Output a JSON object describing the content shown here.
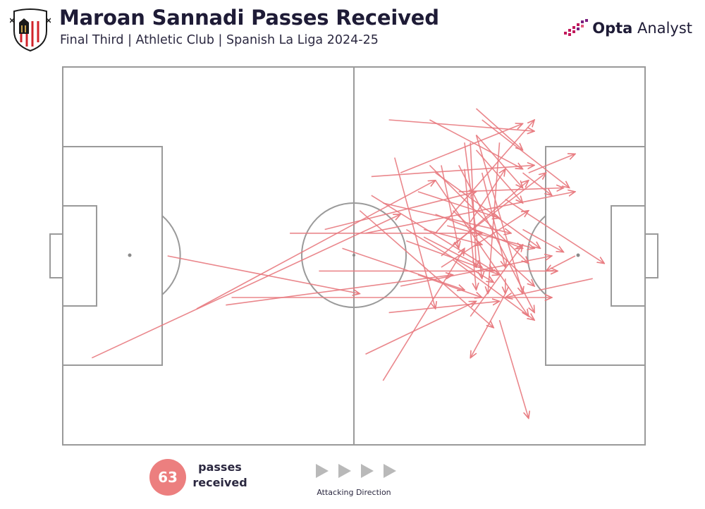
{
  "header": {
    "title": "Maroan Sannadi Passes Received",
    "subtitle": "Final Third | Athletic Club | Spanish La Liga 2024-25"
  },
  "crest": {
    "top_text": "ATHLETIC CLUB",
    "bottom_text": "BILBAO",
    "colors": {
      "red": "#d1232a",
      "black": "#1a1a1a",
      "gold": "#c9a14a"
    }
  },
  "brand": {
    "bold": "Opta",
    "rest": " Analyst",
    "accent": "#c2185b"
  },
  "summary": {
    "count": "63",
    "label_line1": "passes",
    "label_line2": "received"
  },
  "direction": {
    "label": "Attacking Direction",
    "icon": "play-triangle-icon",
    "count": 4
  },
  "colors": {
    "arrow": "#e87a7f",
    "pitch_line": "#9a9a9a",
    "badge": "#ec7f7f",
    "text": "#1e1b36"
  },
  "chart_data": {
    "type": "pass-map",
    "pitch": {
      "length": 100,
      "width": 100,
      "attacking": "left-to-right"
    },
    "passes": [
      [
        5,
        77,
        58,
        39
      ],
      [
        29,
        61,
        84,
        61
      ],
      [
        28,
        63,
        67,
        55
      ],
      [
        45,
        43,
        71,
        33
      ],
      [
        44,
        54,
        85,
        54
      ],
      [
        39,
        44,
        72,
        44
      ],
      [
        23,
        64,
        64,
        30
      ],
      [
        18,
        50,
        51,
        60
      ],
      [
        71,
        18,
        79,
        32
      ],
      [
        91,
        56,
        76,
        61
      ],
      [
        63,
        14,
        79,
        27
      ],
      [
        69,
        20,
        72,
        56
      ],
      [
        80,
        28,
        88,
        23
      ],
      [
        64,
        39,
        79,
        48
      ],
      [
        58,
        28,
        79,
        15
      ],
      [
        56,
        14,
        81,
        17
      ],
      [
        65,
        53,
        80,
        38
      ],
      [
        71,
        18,
        79,
        60
      ],
      [
        71,
        22,
        79,
        36
      ],
      [
        72,
        14,
        87,
        32
      ],
      [
        55,
        36,
        77,
        44
      ],
      [
        67,
        47,
        83,
        28
      ],
      [
        58,
        58,
        84,
        50
      ],
      [
        52,
        76,
        71,
        62
      ],
      [
        59,
        43,
        74,
        57
      ],
      [
        57,
        24,
        64,
        64
      ],
      [
        70,
        66,
        79,
        47
      ],
      [
        61,
        55,
        72,
        61
      ],
      [
        55,
        83,
        69,
        48
      ],
      [
        48,
        48,
        69,
        59
      ],
      [
        88,
        50,
        83,
        54
      ],
      [
        67,
        51,
        81,
        67
      ],
      [
        70,
        41,
        76,
        27
      ],
      [
        68,
        26,
        81,
        65
      ],
      [
        64,
        44,
        81,
        14
      ],
      [
        61,
        33,
        75,
        40
      ],
      [
        70,
        20,
        71,
        53
      ],
      [
        65,
        50,
        80,
        30
      ],
      [
        76,
        35,
        93,
        52
      ],
      [
        62,
        43,
        72,
        47
      ],
      [
        68,
        33,
        86,
        32
      ],
      [
        64,
        30,
        80,
        66
      ],
      [
        65,
        26,
        68,
        48
      ],
      [
        71,
        11,
        79,
        22
      ],
      [
        79,
        28,
        84,
        34
      ],
      [
        76,
        60,
        70,
        77
      ],
      [
        75,
        67,
        80,
        93
      ],
      [
        72,
        28,
        76,
        53
      ],
      [
        59,
        46,
        75,
        55
      ],
      [
        53,
        29,
        81,
        26
      ],
      [
        66,
        42,
        81,
        48
      ],
      [
        53,
        34,
        74,
        54
      ],
      [
        52,
        44,
        88,
        33
      ],
      [
        67,
        38,
        81,
        58
      ],
      [
        56,
        65,
        75,
        62
      ],
      [
        76,
        56,
        76,
        60
      ],
      [
        64,
        28,
        82,
        48
      ],
      [
        75,
        20,
        73,
        60
      ],
      [
        62,
        45,
        72,
        53
      ],
      [
        69,
        27,
        71,
        59
      ],
      [
        79,
        43,
        86,
        49
      ],
      [
        63,
        26,
        80,
        52
      ],
      [
        51,
        38,
        74,
        69
      ]
    ]
  }
}
